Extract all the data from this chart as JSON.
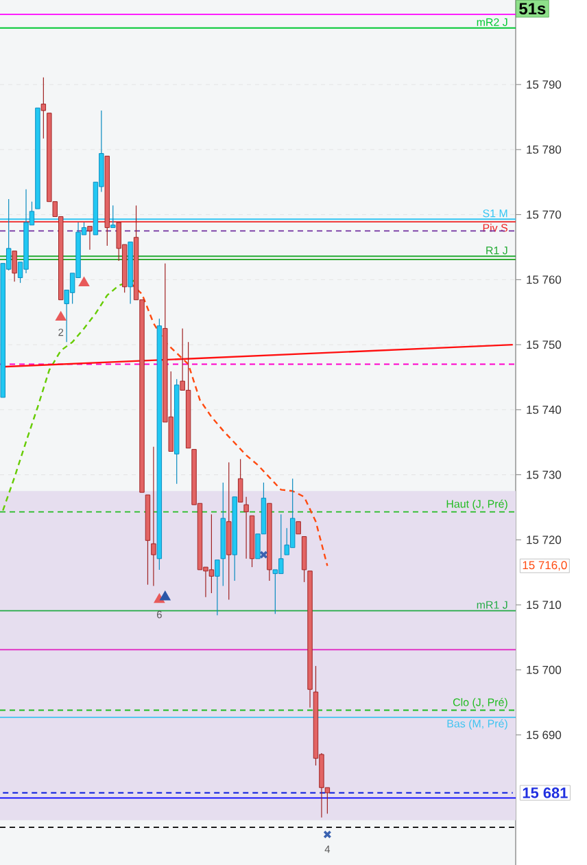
{
  "chart_data": {
    "type": "candlestick",
    "categories": [
      null,
      null,
      null,
      null,
      null,
      null,
      null,
      null,
      null,
      null,
      null,
      null,
      null,
      null,
      null,
      null,
      null,
      null,
      null,
      null,
      null,
      null,
      null,
      null,
      null,
      null,
      null,
      null,
      null,
      null,
      null,
      null,
      null,
      null,
      null,
      null,
      null,
      null,
      null,
      null,
      null,
      null,
      null,
      null,
      null,
      null,
      null,
      null,
      null,
      null,
      null,
      null,
      null,
      null,
      null,
      null,
      null,
      null,
      null,
      null,
      null,
      null,
      null,
      null,
      null,
      null,
      null,
      null,
      null,
      null,
      null,
      null,
      null,
      null,
      null,
      null,
      null,
      null,
      null,
      null,
      null,
      null,
      null,
      null,
      null,
      null,
      null,
      null,
      null
    ],
    "ohlc": [
      [
        15741.9,
        15762.5,
        15741.9,
        15762.5
      ],
      [
        15761.6,
        15772.4,
        15761.4,
        15764.8
      ],
      [
        15764.4,
        15764.4,
        15759.7,
        15761.0
      ],
      [
        15760.3,
        15762.7,
        15759.5,
        15762.7
      ],
      [
        15761.6,
        15773.9,
        15761.0,
        15768.8
      ],
      [
        15768.4,
        15772.0,
        15768.4,
        15770.5
      ],
      [
        15770.9,
        15786.4,
        15770.9,
        15786.4
      ],
      [
        15787.0,
        15791.1,
        15781.7,
        15786.0
      ],
      [
        15785.6,
        15785.6,
        15772.0,
        15772.0
      ],
      [
        15772.0,
        15772.0,
        15769.7,
        15769.7
      ],
      [
        15769.7,
        15769.7,
        15756.9,
        15756.9
      ],
      [
        15756.3,
        15758.4,
        15750.4,
        15758.4
      ],
      [
        15758.0,
        15761.0,
        15756.3,
        15761.0
      ],
      [
        15760.3,
        15768.8,
        15760.3,
        15767.3
      ],
      [
        15766.9,
        15768.8,
        15766.9,
        15768.0
      ],
      [
        15768.2,
        15768.2,
        15764.6,
        15767.5
      ],
      [
        15766.9,
        15775.0,
        15766.9,
        15775.0
      ],
      [
        15774.3,
        15786.0,
        15773.5,
        15779.4
      ],
      [
        15779.0,
        15779.0,
        15765.2,
        15768.0
      ],
      [
        15768.0,
        15771.4,
        15768.0,
        15768.4
      ],
      [
        15768.8,
        15768.8,
        15762.9,
        15764.8
      ],
      [
        15765.4,
        15765.4,
        15758.0,
        15758.9
      ],
      [
        15758.9,
        15765.8,
        15756.3,
        15765.8
      ],
      [
        15766.5,
        15771.4,
        15756.9,
        15756.9
      ],
      [
        15756.9,
        15756.9,
        15727.3,
        15727.3
      ],
      [
        15726.9,
        15726.9,
        15713.1,
        15719.9
      ],
      [
        15719.4,
        15734.3,
        15712.9,
        15717.7
      ],
      [
        15717.1,
        15754.0,
        15715.4,
        15752.9
      ],
      [
        15752.5,
        15762.5,
        15738.1,
        15738.1
      ],
      [
        15738.9,
        15745.9,
        15733.6,
        15733.6
      ],
      [
        15733.2,
        15744.7,
        15728.6,
        15743.8
      ],
      [
        15744.4,
        15752.5,
        15743.0,
        15743.0
      ],
      [
        15743.0,
        15750.4,
        15734.1,
        15734.1
      ],
      [
        15733.9,
        15733.9,
        15725.4,
        15725.4
      ],
      [
        15725.6,
        15725.6,
        15715.4,
        15715.4
      ],
      [
        15715.8,
        15715.8,
        15711.2,
        15715.2
      ],
      [
        15715.4,
        15723.9,
        15711.8,
        15714.4
      ],
      [
        15714.4,
        15716.9,
        15708.4,
        15716.9
      ],
      [
        15717.1,
        15728.8,
        15712.9,
        15723.3
      ],
      [
        15722.8,
        15731.9,
        15710.8,
        15717.7
      ],
      [
        15717.7,
        15726.6,
        15713.7,
        15726.6
      ],
      [
        15729.4,
        15732.4,
        15725.8,
        15725.8
      ],
      [
        15725.4,
        15726.6,
        15717.1,
        15724.3
      ],
      [
        15723.7,
        15723.7,
        15715.8,
        15717.1
      ],
      [
        15717.1,
        15720.9,
        15717.1,
        15720.9
      ],
      [
        15720.9,
        15728.8,
        15720.9,
        15726.4
      ],
      [
        15725.6,
        15725.6,
        15713.7,
        15715.4
      ],
      [
        15714.8,
        15715.4,
        15708.6,
        15715.4
      ],
      [
        15714.8,
        15723.9,
        15714.8,
        15717.1
      ],
      [
        15717.7,
        15721.8,
        15717.7,
        15719.2
      ],
      [
        15718.8,
        15729.4,
        15718.8,
        15723.3
      ],
      [
        15722.8,
        15722.8,
        15720.9,
        15720.9
      ],
      [
        15720.5,
        15720.5,
        15713.5,
        15715.4
      ],
      [
        15715.2,
        15715.2,
        15694.2,
        15697.0
      ],
      [
        15696.6,
        15700.6,
        15685.3,
        15686.4
      ],
      [
        15687.0,
        15687.2,
        15677.3,
        15681.9
      ],
      [
        15681.9,
        15681.9,
        15677.9,
        15681.1
      ],
      null,
      null,
      null,
      null,
      null,
      null,
      null,
      null,
      null,
      null,
      null,
      null,
      null,
      null,
      null,
      null,
      null,
      null,
      null,
      null,
      null,
      null,
      null,
      null,
      null,
      null,
      null,
      null,
      null,
      null,
      null,
      null
    ],
    "series": [
      {
        "type": "line",
        "color": "#66cc00",
        "line_style": "dashed",
        "values": [
          15724.5,
          null,
          15729.6,
          null,
          15735.1,
          null,
          15740.4,
          null,
          15746.1,
          null,
          15749.1,
          null,
          15750.4,
          null,
          15752.5,
          null,
          15754.8,
          null,
          15757.6,
          null,
          15759.1,
          null,
          15759.7,
          15759.9,
          null,
          null,
          null,
          null,
          null,
          null,
          null,
          null,
          null,
          null,
          null,
          null,
          null,
          null,
          null,
          null,
          null,
          null,
          null,
          null,
          null,
          null,
          null,
          null,
          null,
          null,
          null,
          null,
          null,
          null,
          null,
          null,
          null,
          null,
          null,
          null,
          null,
          null,
          null,
          null,
          null,
          null,
          null,
          null,
          null,
          null,
          null,
          null,
          null,
          null,
          null,
          null,
          null,
          null,
          null,
          null,
          null,
          null,
          null,
          null,
          null,
          null,
          null,
          null,
          null
        ]
      },
      {
        "type": "line",
        "name": "15 716,0",
        "color": "#ff4a10",
        "line_style": "dashed",
        "values": [
          null,
          null,
          null,
          null,
          null,
          null,
          null,
          null,
          null,
          null,
          null,
          null,
          null,
          null,
          null,
          null,
          null,
          null,
          null,
          null,
          null,
          null,
          15759.5,
          null,
          15757.8,
          null,
          15753.3,
          null,
          15750.4,
          null,
          15748.7,
          null,
          15747.0,
          null,
          15741.5,
          null,
          15738.9,
          null,
          15736.8,
          null,
          15734.9,
          null,
          15733.0,
          null,
          15731.5,
          null,
          15729.6,
          null,
          15727.7,
          null,
          15727.5,
          null,
          15726.6,
          null,
          15722.8,
          null,
          15716.0,
          null,
          null,
          null,
          null,
          null,
          null,
          null,
          null,
          null,
          null,
          null,
          null,
          null,
          null,
          null,
          null,
          null,
          null,
          null,
          null,
          null,
          null,
          null,
          null,
          null,
          null,
          null,
          null,
          null,
          null,
          null,
          null
        ]
      },
      {
        "type": "line",
        "color": "#ff1010",
        "line_style": "solid",
        "values": [
          15746.6,
          null,
          null,
          null,
          null,
          null,
          null,
          null,
          null,
          null,
          null,
          null,
          null,
          null,
          null,
          null,
          null,
          null,
          null,
          null,
          null,
          null,
          null,
          null,
          null,
          null,
          null,
          null,
          null,
          null,
          null,
          null,
          null,
          null,
          null,
          null,
          null,
          null,
          null,
          null,
          null,
          null,
          null,
          null,
          null,
          null,
          null,
          null,
          null,
          null,
          null,
          null,
          null,
          null,
          null,
          null,
          null,
          null,
          null,
          null,
          null,
          null,
          null,
          null,
          null,
          null,
          null,
          null,
          null,
          null,
          null,
          null,
          null,
          null,
          null,
          null,
          null,
          null,
          null,
          null,
          null,
          null,
          null,
          null,
          null,
          null,
          null,
          null,
          15750.0
        ]
      },
      {
        "type": "line",
        "name": "15 681",
        "color": "#2030e0",
        "line_style": "dashed",
        "values": [
          15681.1,
          null,
          null,
          null,
          null,
          null,
          null,
          null,
          null,
          null,
          null,
          null,
          null,
          null,
          null,
          null,
          null,
          null,
          null,
          null,
          null,
          null,
          null,
          null,
          null,
          null,
          null,
          null,
          null,
          null,
          null,
          null,
          null,
          null,
          null,
          null,
          null,
          null,
          null,
          null,
          null,
          null,
          null,
          null,
          null,
          null,
          null,
          null,
          null,
          null,
          null,
          null,
          null,
          null,
          null,
          null,
          null,
          null,
          null,
          null,
          null,
          null,
          null,
          null,
          null,
          null,
          null,
          null,
          null,
          null,
          null,
          null,
          null,
          null,
          null,
          null,
          null,
          null,
          null,
          null,
          null,
          null,
          null,
          null,
          null,
          null,
          null,
          null,
          15681.1
        ]
      },
      {
        "type": "scatter",
        "color": "#3a62b0",
        "marker": "cross",
        "values": [
          null,
          null,
          null,
          null,
          null,
          null,
          null,
          null,
          null,
          null,
          null,
          null,
          null,
          null,
          null,
          null,
          null,
          null,
          null,
          null,
          null,
          null,
          null,
          null,
          null,
          null,
          null,
          null,
          null,
          null,
          null,
          null,
          null,
          null,
          null,
          null,
          null,
          null,
          null,
          null,
          null,
          null,
          null,
          null,
          null,
          15717.7,
          null,
          null,
          null,
          null,
          null,
          null,
          null,
          null,
          null,
          null,
          null,
          null,
          null,
          null,
          null,
          null,
          null,
          null,
          null,
          null,
          null,
          null,
          null,
          null,
          null,
          null,
          null,
          null,
          null,
          null,
          null,
          null,
          null,
          null,
          null,
          null,
          null,
          null,
          null,
          null,
          null,
          null,
          null
        ]
      },
      {
        "type": "scatter",
        "name": "4",
        "color": "#3a62b0",
        "marker": "cross",
        "values": [
          null,
          null,
          null,
          null,
          null,
          null,
          null,
          null,
          null,
          null,
          null,
          null,
          null,
          null,
          null,
          null,
          null,
          null,
          null,
          null,
          null,
          null,
          null,
          null,
          null,
          null,
          null,
          null,
          null,
          null,
          null,
          null,
          null,
          null,
          null,
          null,
          null,
          null,
          null,
          null,
          null,
          null,
          null,
          null,
          null,
          null,
          null,
          null,
          null,
          null,
          null,
          null,
          null,
          null,
          null,
          null,
          15674.7,
          null,
          null,
          null,
          null,
          null,
          null,
          null,
          null,
          null,
          null,
          null,
          null,
          null,
          null,
          null,
          null,
          null,
          null,
          null,
          null,
          null,
          null,
          null,
          null,
          null,
          null,
          null,
          null,
          null,
          null,
          null,
          null
        ]
      },
      {
        "type": "scatter",
        "name": "2",
        "color": "#e85a5a",
        "marker": "triangle",
        "values": [
          null,
          null,
          null,
          null,
          null,
          null,
          null,
          null,
          null,
          null,
          15754.2,
          null,
          null,
          null,
          null,
          null,
          null,
          null,
          null,
          null,
          null,
          null,
          null,
          null,
          null,
          null,
          null,
          null,
          null,
          null,
          null,
          null,
          null,
          null,
          null,
          null,
          null,
          null,
          null,
          null,
          null,
          null,
          null,
          null,
          null,
          null,
          null,
          null,
          null,
          null,
          null,
          null,
          null,
          null,
          null,
          null,
          null,
          null,
          null,
          null,
          null,
          null,
          null,
          null,
          null,
          null,
          null,
          null,
          null,
          null,
          null,
          null,
          null,
          null,
          null,
          null,
          null,
          null,
          null,
          null,
          null,
          null,
          null,
          null,
          null,
          null,
          null,
          null,
          null
        ]
      },
      {
        "type": "scatter",
        "color": "#e85a5a",
        "marker": "triangle",
        "values": [
          null,
          null,
          null,
          null,
          null,
          null,
          null,
          null,
          null,
          null,
          null,
          null,
          null,
          null,
          15759.5,
          null,
          null,
          null,
          null,
          null,
          null,
          null,
          null,
          null,
          null,
          null,
          null,
          null,
          null,
          null,
          null,
          null,
          null,
          null,
          null,
          null,
          null,
          null,
          null,
          null,
          null,
          null,
          null,
          null,
          null,
          null,
          null,
          null,
          null,
          null,
          null,
          null,
          null,
          null,
          null,
          null,
          null,
          null,
          null,
          null,
          null,
          null,
          null,
          null,
          null,
          null,
          null,
          null,
          null,
          null,
          null,
          null,
          null,
          null,
          null,
          null,
          null,
          null,
          null,
          null,
          null,
          null,
          null,
          null,
          null,
          null,
          null,
          null,
          null
        ]
      },
      {
        "type": "scatter",
        "name": "6",
        "color": "#e85a5a",
        "marker": "triangle",
        "values": [
          null,
          null,
          null,
          null,
          null,
          null,
          null,
          null,
          null,
          null,
          null,
          null,
          null,
          null,
          null,
          null,
          null,
          null,
          null,
          null,
          null,
          null,
          null,
          null,
          null,
          null,
          null,
          15710.8,
          null,
          null,
          null,
          null,
          null,
          null,
          null,
          null,
          null,
          null,
          null,
          null,
          null,
          null,
          null,
          null,
          null,
          null,
          null,
          null,
          null,
          null,
          null,
          null,
          null,
          null,
          null,
          null,
          null,
          null,
          null,
          null,
          null,
          null,
          null,
          null,
          null,
          null,
          null,
          null,
          null,
          null,
          null,
          null,
          null,
          null,
          null,
          null,
          null,
          null,
          null,
          null,
          null,
          null,
          null,
          null,
          null,
          null,
          null,
          null,
          null
        ]
      },
      {
        "type": "scatter",
        "color": "#2a56a8",
        "marker": "triangle",
        "values": [
          null,
          null,
          null,
          null,
          null,
          null,
          null,
          null,
          null,
          null,
          null,
          null,
          null,
          null,
          null,
          null,
          null,
          null,
          null,
          null,
          null,
          null,
          null,
          null,
          null,
          null,
          null,
          null,
          15711.2,
          null,
          null,
          null,
          null,
          null,
          null,
          null,
          null,
          null,
          null,
          null,
          null,
          null,
          null,
          null,
          null,
          null,
          null,
          null,
          null,
          null,
          null,
          null,
          null,
          null,
          null,
          null,
          null,
          null,
          null,
          null,
          null,
          null,
          null,
          null,
          null,
          null,
          null,
          null,
          null,
          null,
          null,
          null,
          null,
          null,
          null,
          null,
          null,
          null,
          null,
          null,
          null,
          null,
          null,
          null,
          null,
          null,
          null,
          null,
          null
        ]
      }
    ],
    "ylim": [
      15670,
      15803
    ],
    "yticks": [
      {
        "value": 15690,
        "label": "15 690"
      },
      {
        "value": 15700,
        "label": "15 700"
      },
      {
        "value": 15710,
        "label": "15 710"
      },
      {
        "value": 15720,
        "label": "15 720"
      },
      {
        "value": 15730,
        "label": "15 730"
      },
      {
        "value": 15740,
        "label": "15 740"
      },
      {
        "value": 15750,
        "label": "15 750"
      },
      {
        "value": 15760,
        "label": "15 760"
      },
      {
        "value": 15770,
        "label": "15 770"
      },
      {
        "value": 15780,
        "label": "15 780"
      },
      {
        "value": 15790,
        "label": "15 790"
      }
    ],
    "grid": "y",
    "tick_labels": "y",
    "bands": [
      {
        "axis": "y",
        "from": 15676.9,
        "to": 15727.5,
        "color": "#e6deef"
      }
    ],
    "ref_lines": [
      {
        "axis": "y",
        "value": 15800.8,
        "color": "#ff00ff"
      },
      {
        "axis": "y",
        "value": 15798.7,
        "color": "#00c832",
        "label": "mR2 J"
      },
      {
        "axis": "y",
        "value": 15769.3,
        "color": "#33c6f4",
        "label": "S1 M"
      },
      {
        "axis": "y",
        "value": 15768.9,
        "color": "#ee2222",
        "label": "Piv S"
      },
      {
        "axis": "y",
        "value": 15767.5,
        "color": "#7030a0",
        "line_style": "dashed"
      },
      {
        "axis": "y",
        "value": 15763.6,
        "color": "#22aa33",
        "label": "R1 J"
      },
      {
        "axis": "y",
        "value": 15763.1,
        "color": "#33aa33"
      },
      {
        "axis": "y",
        "value": 15747.0,
        "color": "#ff00cc",
        "line_style": "dashed"
      },
      {
        "axis": "y",
        "value": 15724.3,
        "color": "#22bb22",
        "line_style": "dashed",
        "label": "Haut (J, Pré)"
      },
      {
        "axis": "y",
        "value": 15709.1,
        "color": "#22aa44",
        "label": "mR1 J"
      },
      {
        "axis": "y",
        "value": 15703.1,
        "color": "#e020c0"
      },
      {
        "axis": "y",
        "value": 15693.8,
        "color": "#22bb22",
        "line_style": "dashed",
        "label": "Clo (J, Pré)"
      },
      {
        "axis": "y",
        "value": 15692.7,
        "color": "#40c4f0",
        "label": "Bas (M, Pré)"
      },
      {
        "axis": "y",
        "value": 15680.3,
        "color": "#0000ff"
      },
      {
        "axis": "y",
        "value": 15675.8,
        "color": "#000000",
        "line_style": "dashed"
      }
    ],
    "annotations": [
      "51s"
    ]
  }
}
